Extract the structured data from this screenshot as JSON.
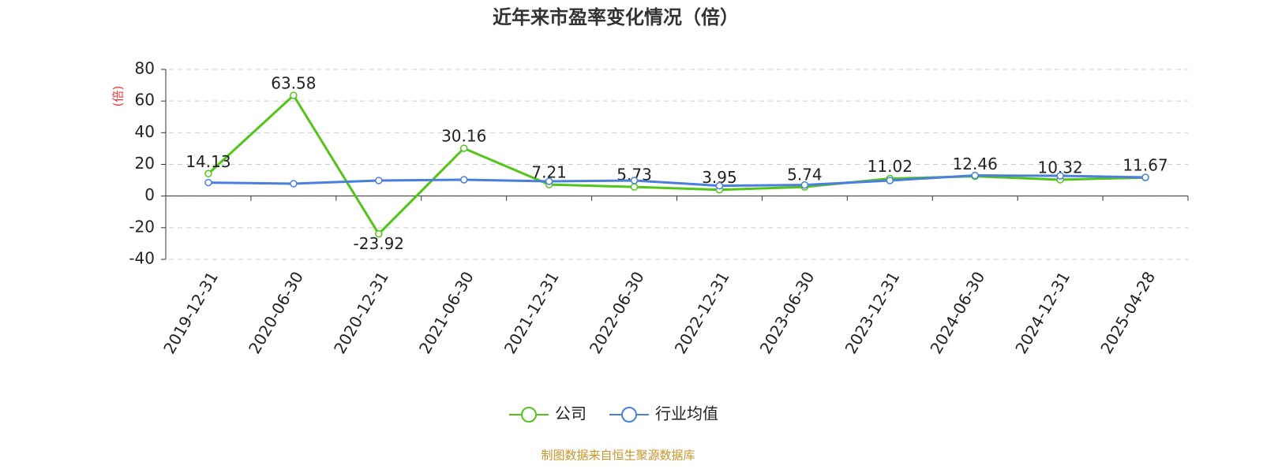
{
  "chart_data": {
    "type": "line",
    "title": "近年来市盈率变化情况（倍）",
    "y_label": "(倍)",
    "source": "制图数据来自恒生聚源数据库",
    "categories": [
      "2019-12-31",
      "2020-06-30",
      "2020-12-31",
      "2021-06-30",
      "2021-12-31",
      "2022-06-30",
      "2022-12-31",
      "2023-06-30",
      "2023-12-31",
      "2024-06-30",
      "2024-12-31",
      "2025-04-28"
    ],
    "series": [
      {
        "name": "公司",
        "color": "#52c41a",
        "values": [
          14.13,
          63.58,
          -23.92,
          30.16,
          7.21,
          5.73,
          3.95,
          5.74,
          11.02,
          12.46,
          10.32,
          11.67
        ]
      },
      {
        "name": "行业均值",
        "color": "#4a7fdc",
        "values": [
          8.5,
          7.8,
          9.8,
          10.3,
          9.3,
          9.8,
          6.5,
          7.0,
          9.8,
          13.0,
          12.8,
          11.8
        ]
      }
    ],
    "ylim": [
      -40,
      80
    ],
    "yticks": [
      -40,
      -20,
      0,
      20,
      40,
      60,
      80
    ],
    "grid": true
  }
}
